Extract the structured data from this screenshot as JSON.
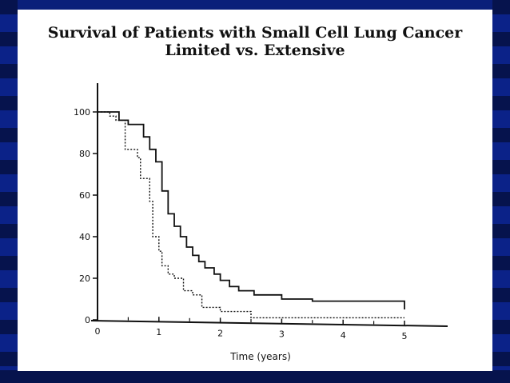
{
  "chart_data": {
    "type": "line",
    "step": true,
    "title": "Survival of Patients with Small Cell Lung Cancer",
    "subtitle": "Limited vs. Extensive",
    "xlabel": "Time (years)",
    "ylabel": "",
    "xlim": [
      0,
      5.7
    ],
    "ylim": [
      0,
      100
    ],
    "xticks": [
      "0",
      "1",
      "2",
      "3",
      "4",
      "5"
    ],
    "yticks": [
      "0",
      "20",
      "40",
      "60",
      "80",
      "100"
    ],
    "grid": false,
    "legend": "none",
    "series": [
      {
        "style": "solid",
        "color": "#111111",
        "x": [
          0.15,
          0.35,
          0.5,
          0.75,
          0.85,
          0.95,
          1.05,
          1.15,
          1.25,
          1.35,
          1.45,
          1.55,
          1.65,
          1.75,
          1.9,
          2.0,
          2.15,
          2.3,
          2.55,
          3.0,
          3.5,
          5.0
        ],
        "y": [
          100,
          96,
          94,
          88,
          82,
          76,
          62,
          51,
          45,
          40,
          35,
          31,
          28,
          25,
          22,
          19,
          16,
          14,
          12,
          10,
          9,
          5
        ]
      },
      {
        "style": "dotted",
        "color": "#111111",
        "x": [
          0.15,
          0.2,
          0.3,
          0.45,
          0.65,
          0.7,
          0.85,
          0.9,
          1.0,
          1.05,
          1.15,
          1.25,
          1.4,
          1.55,
          1.7,
          2.0,
          2.5,
          5.0
        ],
        "y": [
          100,
          98,
          96,
          82,
          78,
          68,
          57,
          40,
          33,
          26,
          22,
          20,
          14,
          12,
          6,
          4,
          1,
          1
        ]
      }
    ]
  }
}
